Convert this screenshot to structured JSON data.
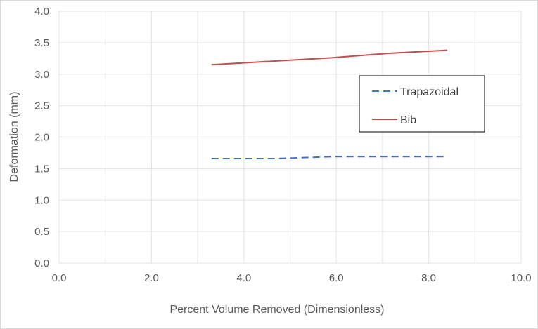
{
  "chart_data": {
    "type": "line",
    "xlabel": "Percent Volume  Removed (Dimensionless)",
    "ylabel": "Deformation (mm)",
    "xlim": [
      0,
      10
    ],
    "ylim": [
      0,
      4
    ],
    "x_ticks": [
      "0.0",
      "2.0",
      "4.0",
      "6.0",
      "8.0",
      "10.0"
    ],
    "y_ticks": [
      "0.0",
      "0.5",
      "1.0",
      "1.5",
      "2.0",
      "2.5",
      "3.0",
      "3.5",
      "4.0"
    ],
    "grid": true,
    "legend_position": "right",
    "series": [
      {
        "name": "Trapazoidal",
        "color": "#4472c4",
        "style": "dashed",
        "x": [
          3.3,
          4.7,
          5.9,
          7.1,
          8.4
        ],
        "y": [
          1.66,
          1.66,
          1.69,
          1.69,
          1.69
        ]
      },
      {
        "name": "Bib",
        "color": "#c0504d",
        "style": "solid",
        "x": [
          3.3,
          4.7,
          5.9,
          7.1,
          8.4
        ],
        "y": [
          3.15,
          3.21,
          3.26,
          3.33,
          3.38
        ]
      }
    ]
  }
}
